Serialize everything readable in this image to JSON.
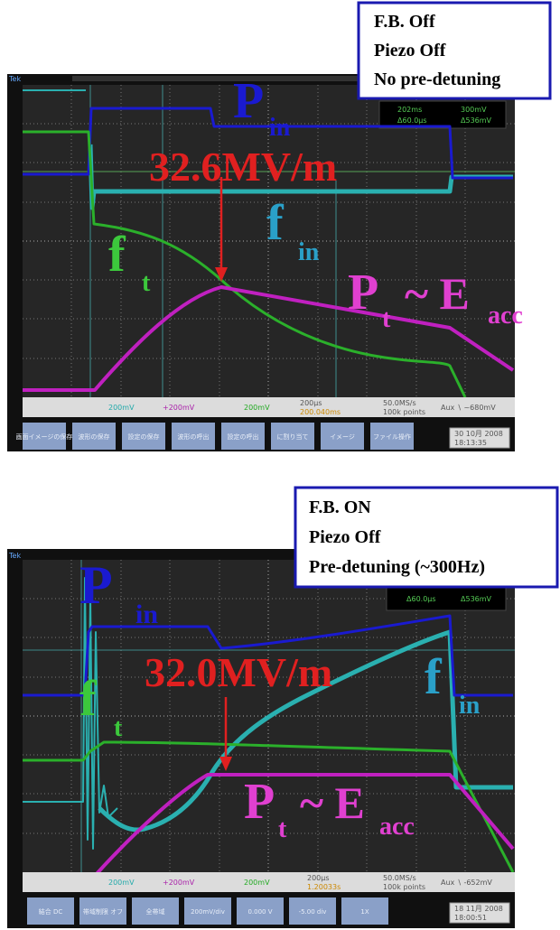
{
  "panels": [
    {
      "conditions": [
        "F.B. Off",
        "Piezo Off",
        "No pre-detuning"
      ],
      "labels": {
        "p_in": [
          "P",
          "in"
        ],
        "field": "32.6MV/m",
        "f_in": [
          "f",
          "in"
        ],
        "f_t": [
          "f",
          "t"
        ],
        "p_t": [
          "P",
          "t",
          "~ E",
          "acc"
        ]
      },
      "scope": {
        "brand": "Tek",
        "readouts": [
          "202ms",
          "300mV",
          "Δ60.0μs",
          "Δ536mV"
        ],
        "channels": [
          "200mV",
          "+200mV",
          "200mV"
        ],
        "timebase": [
          "200μs",
          "200.040ms",
          "50.0MS/s",
          "100k points",
          "Aux ∖ ~680mV"
        ],
        "buttons": [
          "画面イメージの保存",
          "波形の保存",
          "設定の保存",
          "波形の呼出",
          "設定の呼出",
          "に割り当て",
          "イメージ",
          "ファイル操作"
        ],
        "date": "30 10月 2008",
        "time": "18:13:35"
      }
    },
    {
      "conditions": [
        "F.B. ON",
        "Piezo Off",
        "Pre-detuning (~300Hz)"
      ],
      "labels": {
        "p_in": [
          "P",
          "in"
        ],
        "field": "32.0MV/m",
        "f_in": [
          "f",
          "in"
        ],
        "f_t": [
          "f",
          "t"
        ],
        "p_t": [
          "P",
          "t",
          "~ E",
          "acc"
        ]
      },
      "scope": {
        "brand": "Tek",
        "readouts": [
          "Δ60.0μs",
          "Δ536mV"
        ],
        "channels": [
          "200mV",
          "+200mV",
          "200mV"
        ],
        "timebase": [
          "200μs",
          "1.20033s",
          "50.0MS/s",
          "100k points",
          "Aux ∖ -652mV"
        ],
        "buttons": [
          "結合 DC",
          "帯域制限 オフ",
          "全帯域",
          "200mV/div",
          "0.000 V",
          "-5.00 div",
          "1X"
        ],
        "date": "18 11月 2008",
        "time": "18:00:51"
      }
    }
  ]
}
